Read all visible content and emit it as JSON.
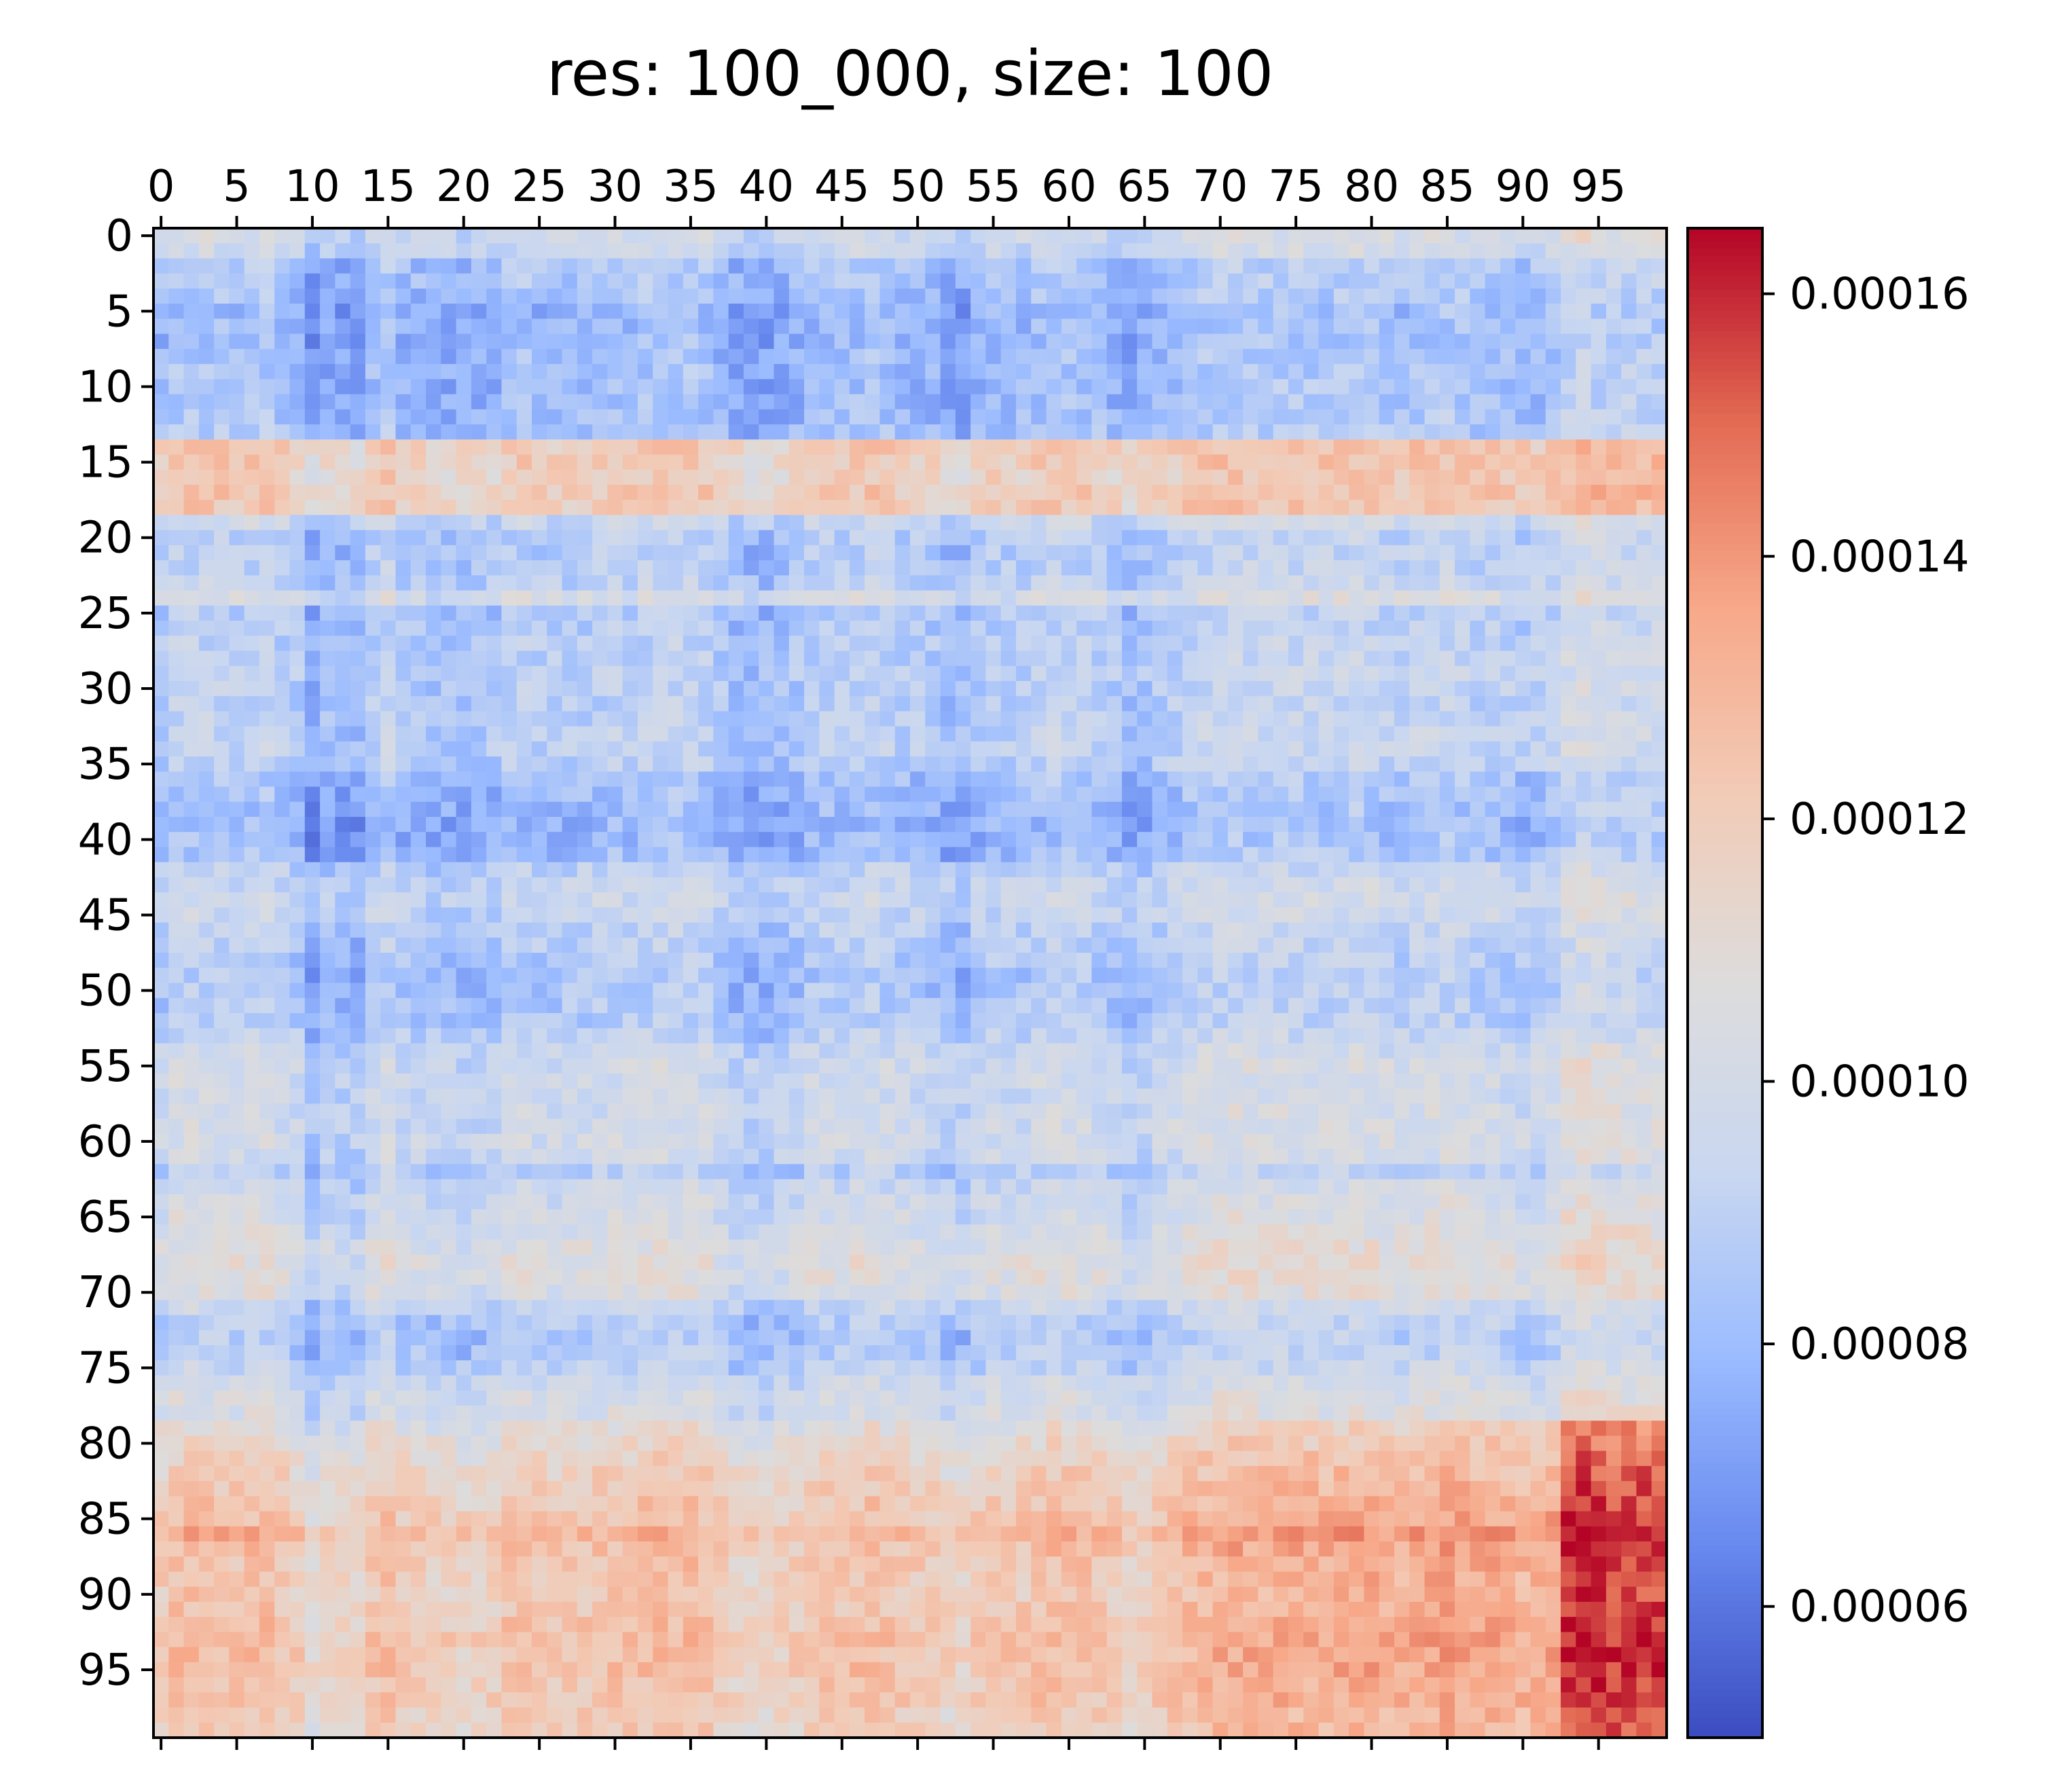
{
  "chart_data": {
    "type": "heatmap",
    "title": "res: 100_000, size: 100",
    "rows": 100,
    "cols": 100,
    "x_ticks": [
      0,
      5,
      10,
      15,
      20,
      25,
      30,
      35,
      40,
      45,
      50,
      55,
      60,
      65,
      70,
      75,
      80,
      85,
      90,
      95
    ],
    "y_ticks": [
      0,
      5,
      10,
      15,
      20,
      25,
      30,
      35,
      40,
      45,
      50,
      55,
      60,
      65,
      70,
      75,
      80,
      85,
      90,
      95
    ],
    "x_tick_position": "top",
    "colormap": "coolwarm",
    "colormap_stops": [
      "#3b4cc0",
      "#6788ee",
      "#9abbff",
      "#c9d7f0",
      "#dddcdc",
      "#f2cbb7",
      "#f7a889",
      "#e26952",
      "#b40426"
    ],
    "vmin": 5e-05,
    "vmax": 0.000165,
    "colorbar": {
      "ticks": [
        6e-05,
        8e-05,
        0.0001,
        0.00012,
        0.00014,
        0.00016
      ],
      "tick_labels": [
        "0.00006",
        "0.00008",
        "0.00010",
        "0.00012",
        "0.00014",
        "0.00016"
      ],
      "position": "right"
    },
    "row_profile": [
      9.75e-05,
      9.5e-05,
      8.4e-05,
      8.4e-05,
      8.2e-05,
      7.8e-05,
      7.9e-05,
      8e-05,
      8.1e-05,
      8.1e-05,
      8.05e-05,
      8.1e-05,
      8.2e-05,
      8.3e-05,
      0.000121,
      0.00012,
      0.000118,
      0.000121,
      0.00012,
      9.5e-05,
      8.8e-05,
      8.7e-05,
      8.8e-05,
      9e-05,
      0.0001,
      8.6e-05,
      8.7e-05,
      8.8e-05,
      8.9e-05,
      9e-05,
      8.9e-05,
      8.8e-05,
      8.9e-05,
      9e-05,
      9e-05,
      8.8e-05,
      8.2e-05,
      8.1e-05,
      8e-05,
      7.8e-05,
      7.9e-05,
      8.1e-05,
      9e-05,
      9.4e-05,
      9.5e-05,
      9.3e-05,
      9e-05,
      8.8e-05,
      8.6e-05,
      8.4e-05,
      8.5e-05,
      8.6e-05,
      8.6e-05,
      9e-05,
      9.5e-05,
      9.8e-05,
      9.7e-05,
      9.6e-05,
      9.7e-05,
      9.8e-05,
      9.9e-05,
      9.6e-05,
      8.8e-05,
      9.5e-05,
      9.8e-05,
      0.0001,
      0.000102,
      0.000105,
      0.000107,
      0.000105,
      0.000103,
      9.4e-05,
      8.8e-05,
      8.6e-05,
      8.7e-05,
      9.1e-05,
      9.7e-05,
      0.0001,
      0.000102,
      0.000108,
      0.000112,
      0.000115,
      0.000118,
      0.00012,
      0.000122,
      0.000124,
      0.00013,
      0.000125,
      0.000123,
      0.000122,
      0.000121,
      0.000123,
      0.000124,
      0.000126,
      0.000125,
      0.000125,
      0.000123,
      0.000123,
      0.00012,
      0.00012
    ],
    "col_profile": [
      9.3e-05,
      9.9e-05,
      9.9e-05,
      9.9e-05,
      9.8e-05,
      9.6e-05,
      9.8e-05,
      9.9e-05,
      9.5e-05,
      9.2e-05,
      8.2e-05,
      8.8e-05,
      8.6e-05,
      8.5e-05,
      9.5e-05,
      9.9e-05,
      9.2e-05,
      9.2e-05,
      9e-05,
      9e-05,
      8.8e-05,
      9e-05,
      9.1e-05,
      9.6e-05,
      9.7e-05,
      9.4e-05,
      9.3e-05,
      9.4e-05,
      9.5e-05,
      9.6e-05,
      9.7e-05,
      9.6e-05,
      9.8e-05,
      9.9e-05,
      9.9e-05,
      9.9e-05,
      9.7e-05,
      9.2e-05,
      8.8e-05,
      8.6e-05,
      8.6e-05,
      8.9e-05,
      9.1e-05,
      9.5e-05,
      9.6e-05,
      9.5e-05,
      9.7e-05,
      9.8e-05,
      9.6e-05,
      9.4e-05,
      9.3e-05,
      9.2e-05,
      8.8e-05,
      8.7e-05,
      9.2e-05,
      9.5e-05,
      9.4e-05,
      9.4e-05,
      9.7e-05,
      9.9e-05,
      9.8e-05,
      9.7e-05,
      9.5e-05,
      9.2e-05,
      8.8e-05,
      9e-05,
      9.3e-05,
      9.6e-05,
      9.8e-05,
      0.0001,
      0.000101,
      0.000102,
      0.000101,
      0.0001,
      0.000101,
      0.0001,
      0.0001,
      9.9e-05,
      0.0001,
      0.000101,
      0.0001,
      9.8e-05,
      9.7e-05,
      9.9e-05,
      0.0001,
      0.000101,
      9.9e-05,
      9.7e-05,
      9.8e-05,
      9.6e-05,
      9.4e-05,
      9.5e-05,
      9.8e-05,
      0.000105,
      0.000108,
      0.000105,
      0.000103,
      0.000104,
      0.000103,
      0.000103
    ]
  }
}
